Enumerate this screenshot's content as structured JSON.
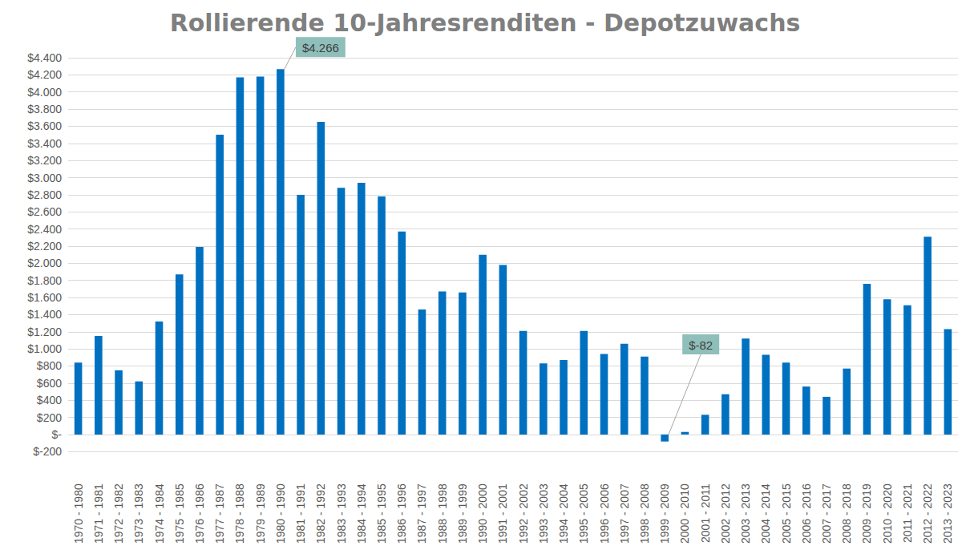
{
  "chart_data": {
    "type": "bar",
    "title": "Rollierende 10-Jahresrenditen - Depotzuwachs",
    "categories": [
      "1970 - 1980",
      "1971 - 1981",
      "1972 - 1982",
      "1973 - 1983",
      "1974 - 1984",
      "1975 - 1985",
      "1976 - 1986",
      "1977 - 1987",
      "1978 - 1988",
      "1979 - 1989",
      "1980 - 1990",
      "1981 - 1991",
      "1982 - 1992",
      "1983 - 1993",
      "1984 - 1994",
      "1985 - 1995",
      "1986 - 1996",
      "1987 - 1997",
      "1988 - 1998",
      "1989 - 1999",
      "1990 - 2000",
      "1991 - 2001",
      "1992 - 2002",
      "1993 - 2003",
      "1994 - 2004",
      "1995 - 2005",
      "1996 - 2006",
      "1997 - 2007",
      "1998 - 2008",
      "1999 - 2009",
      "2000 - 2010",
      "2001 - 2011",
      "2002 - 2012",
      "2003 - 2013",
      "2004 - 2014",
      "2005 - 2015",
      "2006 - 2016",
      "2007 - 2017",
      "2008 - 2018",
      "2009 - 2019",
      "2010 - 2020",
      "2011 - 2021",
      "2012 - 2022",
      "2013 - 2023"
    ],
    "values": [
      840,
      1150,
      750,
      620,
      1320,
      1870,
      2190,
      3500,
      4170,
      4180,
      4266,
      2800,
      3650,
      2880,
      2940,
      2780,
      2370,
      1460,
      1670,
      1660,
      2100,
      1980,
      1210,
      830,
      870,
      1210,
      940,
      1060,
      910,
      -82,
      30,
      230,
      470,
      1120,
      930,
      840,
      560,
      440,
      770,
      1760,
      1580,
      1510,
      2310,
      1230
    ],
    "color": "#0070c0",
    "ylim": [
      -200,
      4400
    ],
    "yticks": [
      {
        "value": -200,
        "label": "$-200"
      },
      {
        "value": 0,
        "label": "$-"
      },
      {
        "value": 200,
        "label": "$200"
      },
      {
        "value": 400,
        "label": "$400"
      },
      {
        "value": 600,
        "label": "$600"
      },
      {
        "value": 800,
        "label": "$800"
      },
      {
        "value": 1000,
        "label": "$1.000"
      },
      {
        "value": 1200,
        "label": "$1.200"
      },
      {
        "value": 1400,
        "label": "$1.400"
      },
      {
        "value": 1600,
        "label": "$1.600"
      },
      {
        "value": 1800,
        "label": "$1.800"
      },
      {
        "value": 2000,
        "label": "$2.000"
      },
      {
        "value": 2200,
        "label": "$2.200"
      },
      {
        "value": 2400,
        "label": "$2.400"
      },
      {
        "value": 2600,
        "label": "$2.600"
      },
      {
        "value": 2800,
        "label": "$2.800"
      },
      {
        "value": 3000,
        "label": "$3.000"
      },
      {
        "value": 3200,
        "label": "$3.200"
      },
      {
        "value": 3400,
        "label": "$3.400"
      },
      {
        "value": 3600,
        "label": "$3.600"
      },
      {
        "value": 3800,
        "label": "$3.800"
      },
      {
        "value": 4000,
        "label": "$4.000"
      },
      {
        "value": 4200,
        "label": "$4.200"
      },
      {
        "value": 4400,
        "label": "$4.400"
      }
    ],
    "grid": true,
    "annotations": [
      {
        "category": "1980 - 1990",
        "value": 4266,
        "label": "$4.266"
      },
      {
        "category": "1999 - 2009",
        "value": -82,
        "label": "$-82"
      }
    ]
  }
}
